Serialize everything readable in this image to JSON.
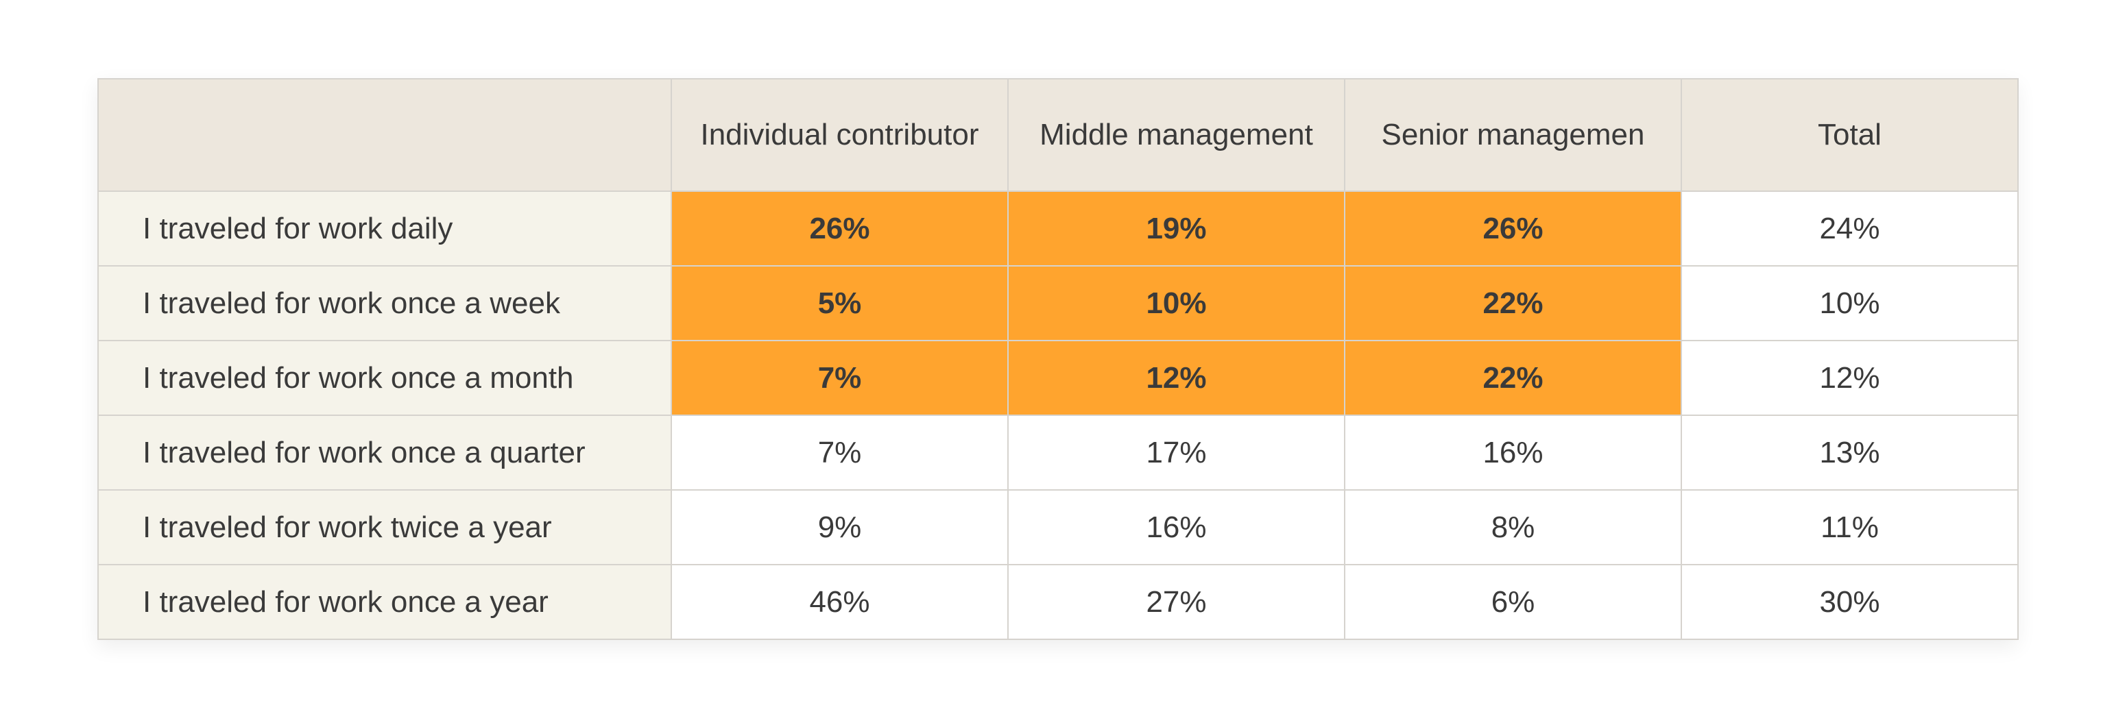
{
  "chart_data": {
    "type": "table",
    "columns": [
      "",
      "Individual contributor",
      "Middle management",
      "Senior managemen",
      "Total"
    ],
    "rows": [
      {
        "label": "I traveled for work daily",
        "values": [
          "26%",
          "19%",
          "26%",
          "24%"
        ],
        "highlight": [
          true,
          true,
          true,
          false
        ]
      },
      {
        "label": "I traveled for work once a week",
        "values": [
          "5%",
          "10%",
          "22%",
          "10%"
        ],
        "highlight": [
          true,
          true,
          true,
          false
        ]
      },
      {
        "label": "I traveled for work once a month",
        "values": [
          "7%",
          "12%",
          "22%",
          "12%"
        ],
        "highlight": [
          true,
          true,
          true,
          false
        ]
      },
      {
        "label": "I traveled for work once a quarter",
        "values": [
          "7%",
          "17%",
          "16%",
          "13%"
        ],
        "highlight": [
          false,
          false,
          false,
          false
        ]
      },
      {
        "label": "I traveled for work twice a year",
        "values": [
          "9%",
          "16%",
          "8%",
          "11%"
        ],
        "highlight": [
          false,
          false,
          false,
          false
        ]
      },
      {
        "label": "I traveled for work once a year",
        "values": [
          "46%",
          "27%",
          "6%",
          "30%"
        ],
        "highlight": [
          false,
          false,
          false,
          false
        ]
      }
    ]
  },
  "colors": {
    "header_bg": "#ede7dd",
    "label_bg": "#f5f3ea",
    "highlight_bg": "#ffa42e",
    "cell_bg": "#ffffff",
    "border": "#d6d3ce",
    "text": "#3a3a3a"
  }
}
